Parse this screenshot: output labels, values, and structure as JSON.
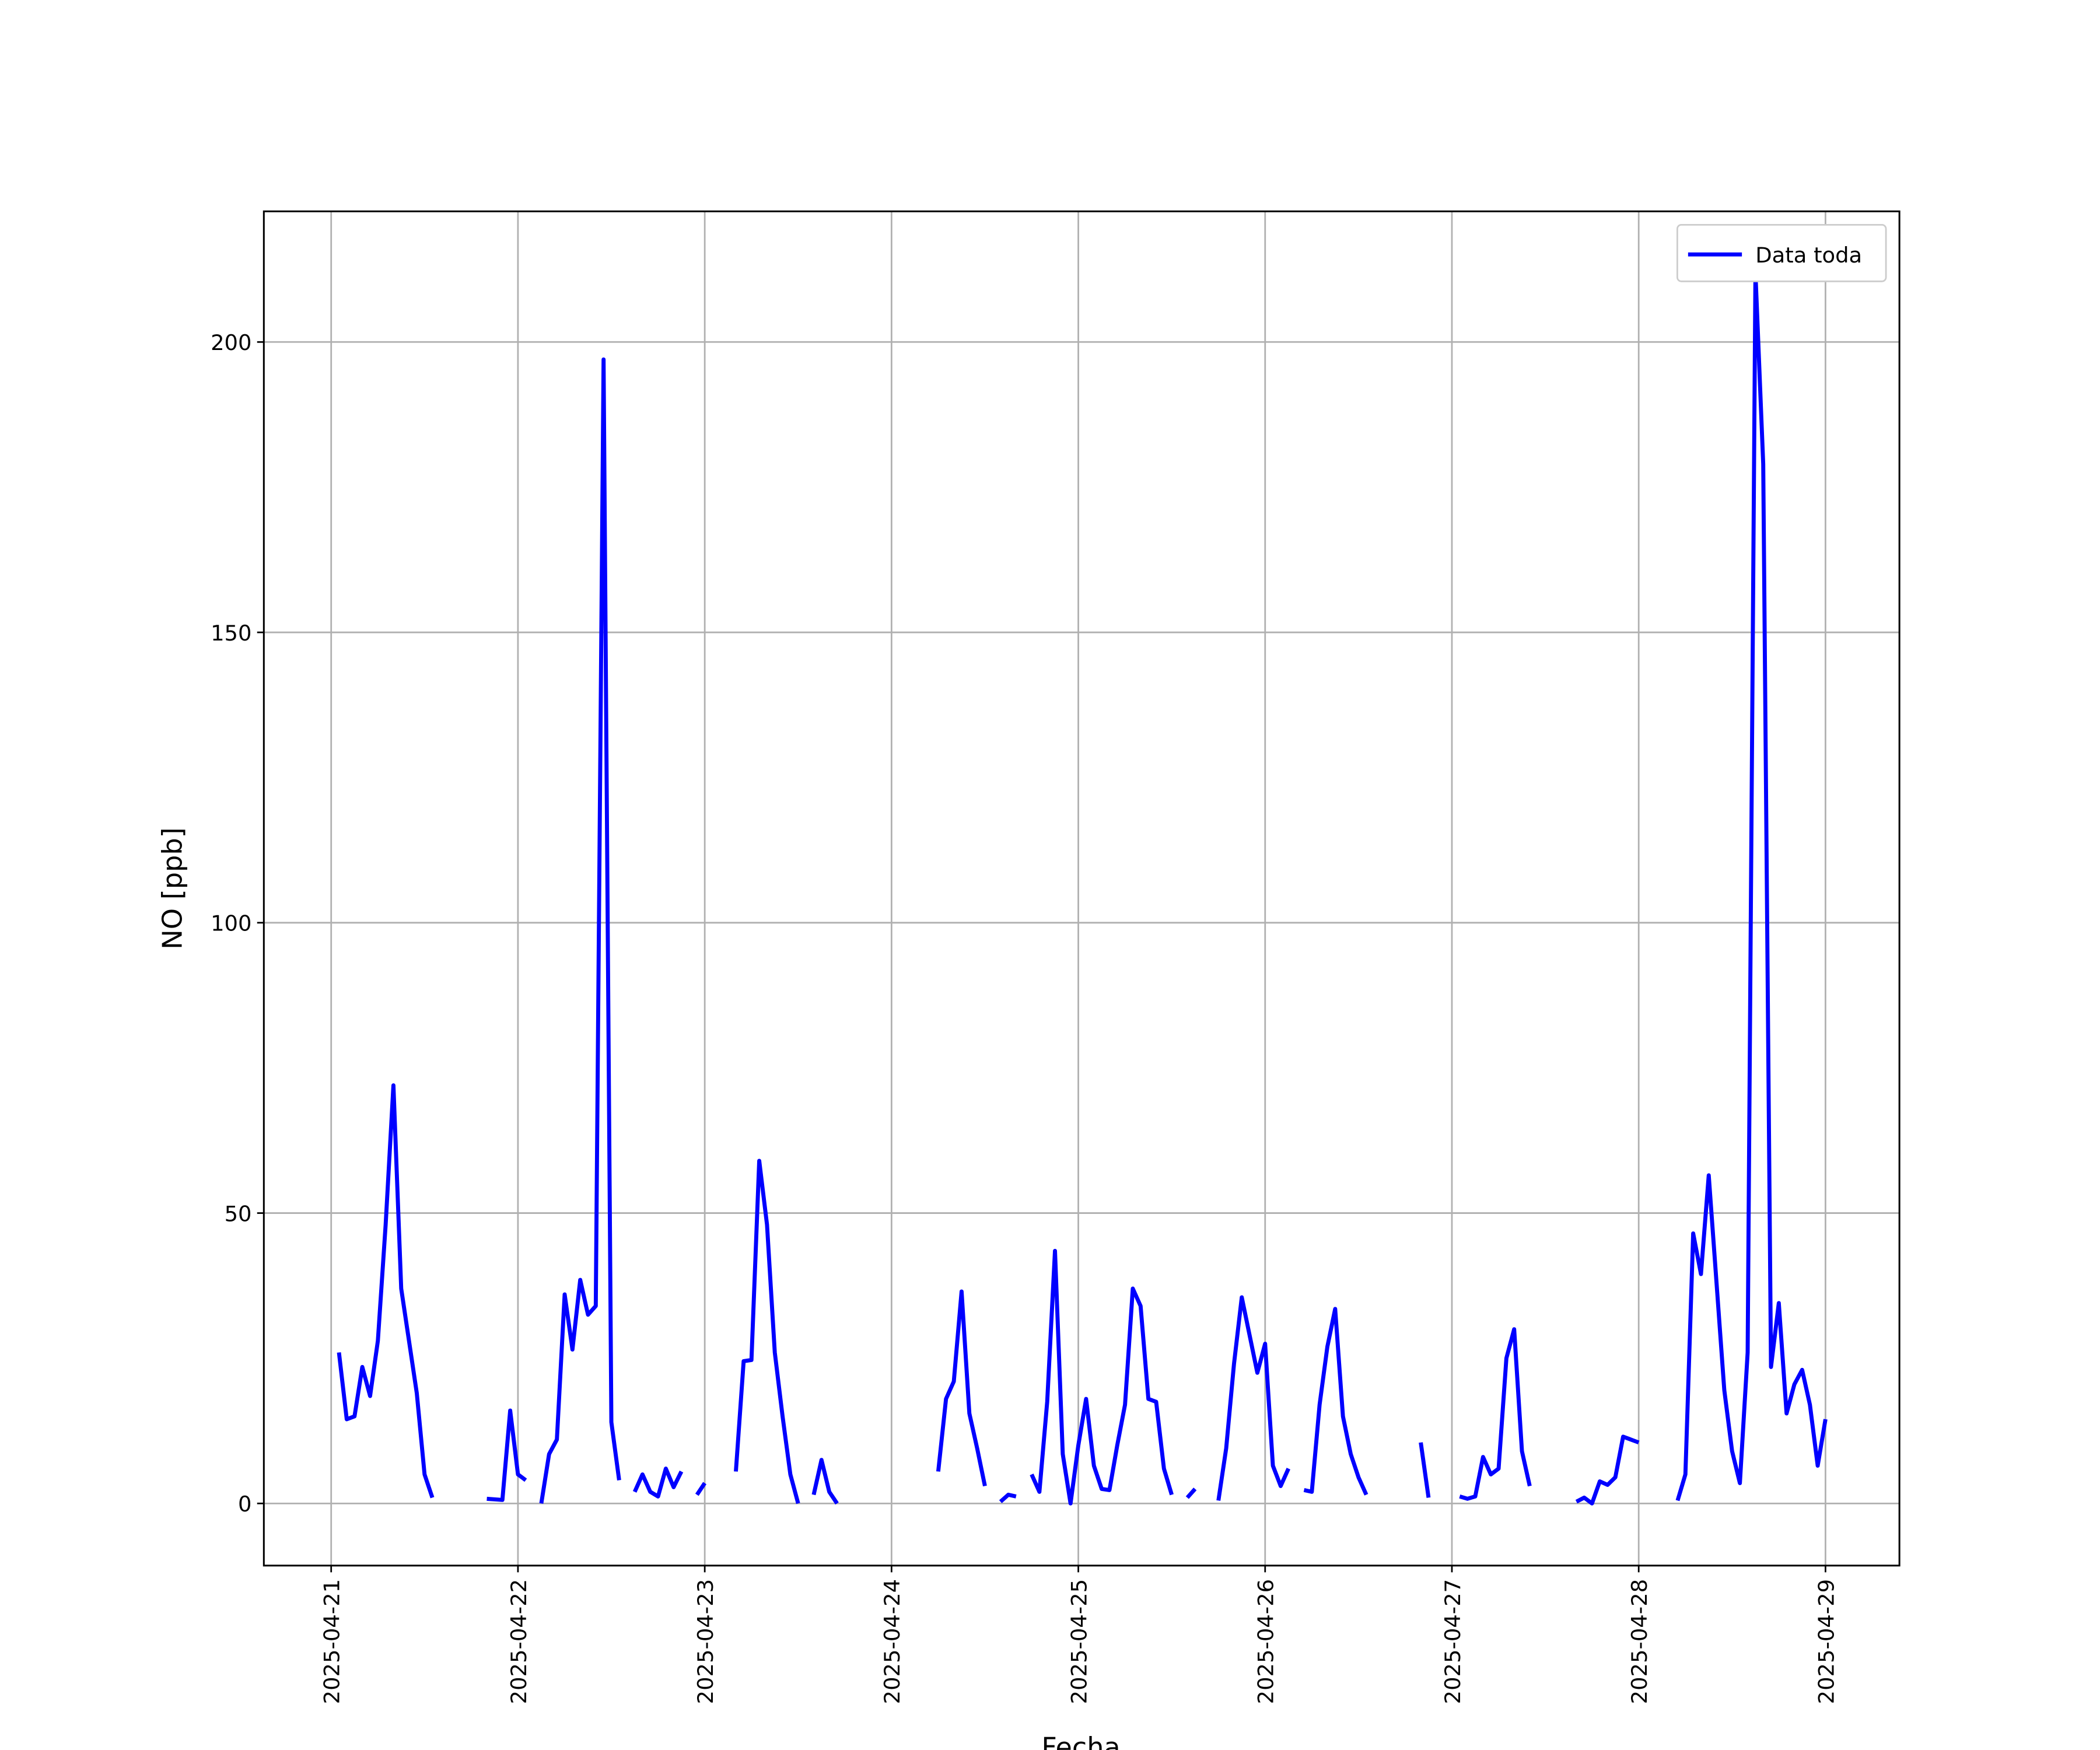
{
  "chart_data": {
    "type": "line",
    "xlabel": "Fecha",
    "ylabel": "NO [ppb]",
    "x": [
      "2025-04-21 01:00",
      "2025-04-21 02:00",
      "2025-04-21 03:00",
      "2025-04-21 04:00",
      "2025-04-21 05:00",
      "2025-04-21 06:00",
      "2025-04-21 07:00",
      "2025-04-21 08:00",
      "2025-04-21 09:00",
      "2025-04-21 10:00",
      "2025-04-21 11:00",
      "2025-04-21 12:00",
      "2025-04-21 13:00",
      "2025-04-21 14:00",
      "2025-04-21 20:00",
      "2025-04-21 21:00",
      "2025-04-21 22:00",
      "2025-04-21 23:00",
      "2025-04-22 00:00",
      "2025-04-22 01:00",
      "2025-04-22 02:00",
      "2025-04-22 03:00",
      "2025-04-22 04:00",
      "2025-04-22 05:00",
      "2025-04-22 06:00",
      "2025-04-22 07:00",
      "2025-04-22 08:00",
      "2025-04-22 09:00",
      "2025-04-22 10:00",
      "2025-04-22 11:00",
      "2025-04-22 12:00",
      "2025-04-22 13:00",
      "2025-04-22 14:00",
      "2025-04-22 15:00",
      "2025-04-22 16:00",
      "2025-04-22 17:00",
      "2025-04-22 18:00",
      "2025-04-22 19:00",
      "2025-04-22 20:00",
      "2025-04-22 21:00",
      "2025-04-22 22:00",
      "2025-04-22 23:00",
      "2025-04-23 00:00",
      "2025-04-23 01:00",
      "2025-04-23 04:00",
      "2025-04-23 05:00",
      "2025-04-23 06:00",
      "2025-04-23 07:00",
      "2025-04-23 08:00",
      "2025-04-23 09:00",
      "2025-04-23 10:00",
      "2025-04-23 11:00",
      "2025-04-23 12:00",
      "2025-04-23 13:00",
      "2025-04-23 14:00",
      "2025-04-23 15:00",
      "2025-04-23 16:00",
      "2025-04-23 17:00",
      "2025-04-23 18:00",
      "2025-04-24 06:00",
      "2025-04-24 07:00",
      "2025-04-24 08:00",
      "2025-04-24 09:00",
      "2025-04-24 10:00",
      "2025-04-24 11:00",
      "2025-04-24 12:00",
      "2025-04-24 13:00",
      "2025-04-24 14:00",
      "2025-04-24 15:00",
      "2025-04-24 16:00",
      "2025-04-24 17:00",
      "2025-04-24 18:00",
      "2025-04-24 19:00",
      "2025-04-24 20:00",
      "2025-04-24 21:00",
      "2025-04-24 22:00",
      "2025-04-24 23:00",
      "2025-04-25 00:00",
      "2025-04-25 01:00",
      "2025-04-25 02:00",
      "2025-04-25 03:00",
      "2025-04-25 04:00",
      "2025-04-25 05:00",
      "2025-04-25 06:00",
      "2025-04-25 07:00",
      "2025-04-25 08:00",
      "2025-04-25 09:00",
      "2025-04-25 10:00",
      "2025-04-25 11:00",
      "2025-04-25 12:00",
      "2025-04-25 13:00",
      "2025-04-25 14:00",
      "2025-04-25 15:00",
      "2025-04-25 16:00",
      "2025-04-25 18:00",
      "2025-04-25 19:00",
      "2025-04-25 20:00",
      "2025-04-25 21:00",
      "2025-04-25 22:00",
      "2025-04-25 23:00",
      "2025-04-26 00:00",
      "2025-04-26 01:00",
      "2025-04-26 02:00",
      "2025-04-26 03:00",
      "2025-04-26 04:00",
      "2025-04-26 05:00",
      "2025-04-26 06:00",
      "2025-04-26 07:00",
      "2025-04-26 08:00",
      "2025-04-26 09:00",
      "2025-04-26 10:00",
      "2025-04-26 11:00",
      "2025-04-26 12:00",
      "2025-04-26 13:00",
      "2025-04-26 14:00",
      "2025-04-26 20:00",
      "2025-04-26 21:00",
      "2025-04-26 22:00",
      "2025-04-27 01:00",
      "2025-04-27 02:00",
      "2025-04-27 03:00",
      "2025-04-27 04:00",
      "2025-04-27 05:00",
      "2025-04-27 06:00",
      "2025-04-27 07:00",
      "2025-04-27 08:00",
      "2025-04-27 09:00",
      "2025-04-27 10:00",
      "2025-04-27 11:00",
      "2025-04-27 16:00",
      "2025-04-27 17:00",
      "2025-04-27 18:00",
      "2025-04-27 19:00",
      "2025-04-27 20:00",
      "2025-04-27 21:00",
      "2025-04-27 22:00",
      "2025-04-27 23:00",
      "2025-04-28 00:00",
      "2025-04-28 01:00",
      "2025-04-28 05:00",
      "2025-04-28 06:00",
      "2025-04-28 07:00",
      "2025-04-28 08:00",
      "2025-04-28 09:00",
      "2025-04-28 10:00",
      "2025-04-28 11:00",
      "2025-04-28 12:00",
      "2025-04-28 13:00",
      "2025-04-28 14:00",
      "2025-04-28 15:00",
      "2025-04-28 16:00",
      "2025-04-28 17:00",
      "2025-04-28 18:00",
      "2025-04-28 19:00",
      "2025-04-28 20:00",
      "2025-04-28 21:00",
      "2025-04-28 22:00",
      "2025-04-28 23:00",
      "2025-04-29 00:00"
    ],
    "series": [
      {
        "name": "Data toda",
        "color": "#0000ff",
        "values": [
          26,
          14.5,
          15,
          23.5,
          18.5,
          28,
          48,
          72,
          37,
          28,
          19,
          5,
          1,
          null,
          0.8,
          0.7,
          0.6,
          16,
          5,
          4,
          null,
          0,
          8.5,
          11,
          36,
          26.5,
          38.5,
          32.5,
          34,
          197,
          14,
          4,
          null,
          2,
          5,
          2,
          1.2,
          6,
          2.8,
          5.5,
          null,
          1.5,
          3.5,
          null,
          5.5,
          24.5,
          24.7,
          59,
          48,
          26,
          15,
          5,
          0,
          null,
          1.5,
          7.5,
          2,
          0,
          null,
          5.5,
          18,
          21,
          36.5,
          15.5,
          9.5,
          3,
          null,
          0.3,
          1.5,
          1.2,
          null,
          5,
          2,
          17.5,
          43.5,
          8.5,
          0,
          10,
          18,
          6.5,
          2.5,
          2.3,
          10,
          17,
          37,
          34,
          18,
          17.5,
          6,
          1.5,
          null,
          1,
          2.5,
          null,
          0.5,
          9.5,
          24,
          35.5,
          29,
          22.5,
          27.5,
          6.5,
          3,
          6,
          null,
          2.3,
          2,
          17,
          27,
          33.5,
          15,
          8.5,
          4.5,
          1.5,
          null,
          10.5,
          1,
          null,
          1.2,
          0.8,
          1.2,
          8,
          5,
          6,
          25,
          30,
          9,
          3,
          null,
          0.3,
          1,
          0,
          3.8,
          3.2,
          4.5,
          11.5,
          11,
          10.5,
          null,
          0.5,
          5,
          46.5,
          39.5,
          56.5,
          38,
          19.5,
          9,
          3.5,
          26,
          212,
          179,
          23.5,
          34.5,
          15.5,
          20.5,
          23,
          17,
          6.5,
          14.5
        ]
      }
    ],
    "xlim": [
      "2025-04-20 15:21",
      "2025-04-29 09:30"
    ],
    "xticks": [
      "2025-04-21",
      "2025-04-22",
      "2025-04-23",
      "2025-04-24",
      "2025-04-25",
      "2025-04-26",
      "2025-04-27",
      "2025-04-28",
      "2025-04-29"
    ],
    "ylim": [
      -10.7,
      222.5
    ],
    "yticks": [
      0,
      50,
      100,
      150,
      200
    ],
    "grid": true,
    "legend": "upper right"
  }
}
